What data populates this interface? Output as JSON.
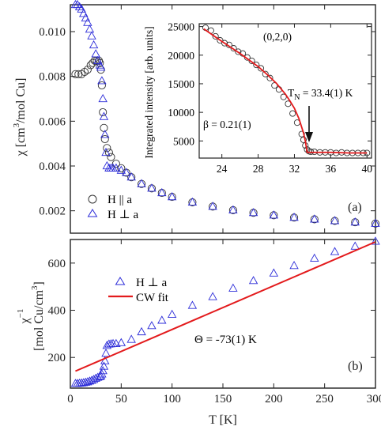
{
  "colors": {
    "circle": "#333333",
    "triangle": "#2b2bd8",
    "fit": "#e31a1c",
    "axis": "#222222"
  },
  "labels": {
    "chi_sub": "3",
    "a_ylabel_pre": "χ [cm",
    "a_ylabel_post": "/mol Cu]",
    "b_ylabel_line1": "χ",
    "b_ylabel_sup": "−1",
    "b_ylabel_line2": "[mol Cu/cm",
    "b_ylabel_sup2": "3",
    "b_ylabel_close": "]",
    "xlabel": "T [K]",
    "panel_a": "(a)",
    "panel_b": "(b)",
    "legend_a1": "H || a",
    "legend_a2": "H ⊥ a",
    "legend_b1": "H ⊥ a",
    "legend_b2": "CW fit",
    "theta": "Θ = -73(1) K",
    "inset_ylabel": "Integrated intensity [arb. units]",
    "inset_peak": "(0,2,0)",
    "inset_tn_pre": "T",
    "inset_tn_sub": "N",
    "inset_tn_post": " = 33.4(1) K",
    "inset_beta": "β  = 0.21(1)"
  },
  "chart_data": [
    {
      "id": "panel-a",
      "type": "scatter",
      "xlabel": "T [K]",
      "ylabel": "χ [cm3/mol Cu]",
      "xlim": [
        0,
        300
      ],
      "ylim": [
        0.001,
        0.0112
      ],
      "xticks": [
        0,
        50,
        100,
        150,
        200,
        250,
        300
      ],
      "yticks": [
        "0.002",
        "0.004",
        "0.006",
        "0.008",
        "0.010"
      ],
      "ytick_values": [
        0.002,
        0.004,
        0.006,
        0.008,
        0.01
      ],
      "series": [
        {
          "name": "H || a",
          "marker": "circle",
          "x": [
            5,
            8,
            11,
            14,
            17,
            20,
            22,
            24,
            26,
            28,
            29,
            30,
            31,
            32,
            33,
            34,
            36,
            38,
            40,
            45,
            50,
            55,
            60,
            70,
            80,
            90,
            100,
            120,
            140,
            160,
            180,
            200,
            220,
            240,
            260,
            280,
            300
          ],
          "y": [
            0.0081,
            0.0081,
            0.0081,
            0.0082,
            0.0083,
            0.0085,
            0.0086,
            0.0087,
            0.0087,
            0.0087,
            0.0086,
            0.0083,
            0.0076,
            0.0064,
            0.0057,
            0.0052,
            0.0048,
            0.0046,
            0.0044,
            0.0041,
            0.0039,
            0.0037,
            0.0035,
            0.0032,
            0.003,
            0.0028,
            0.00262,
            0.00238,
            0.00219,
            0.00203,
            0.00191,
            0.0018,
            0.0017,
            0.00162,
            0.00155,
            0.00149,
            0.00143
          ]
        },
        {
          "name": "H ⊥ a",
          "marker": "triangle",
          "x": [
            5,
            7,
            9,
            11,
            13,
            15,
            17,
            19,
            21,
            23,
            25,
            27,
            29,
            30,
            31,
            32,
            33,
            34,
            35,
            36,
            38,
            40,
            42,
            45,
            50,
            55,
            60,
            70,
            80,
            90,
            100,
            120,
            140,
            160,
            180,
            200,
            220,
            240,
            260,
            280,
            300
          ],
          "y": [
            0.0112,
            0.0112,
            0.0111,
            0.011,
            0.0108,
            0.0106,
            0.0104,
            0.0101,
            0.0098,
            0.0094,
            0.009,
            0.0087,
            0.0085,
            0.0084,
            0.0078,
            0.007,
            0.0062,
            0.0054,
            0.0046,
            0.004,
            0.0039,
            0.0039,
            0.0039,
            0.0039,
            0.0038,
            0.0037,
            0.0035,
            0.0032,
            0.003,
            0.0028,
            0.00262,
            0.00238,
            0.00219,
            0.00203,
            0.00191,
            0.0018,
            0.0017,
            0.00162,
            0.00155,
            0.00149,
            0.00143
          ]
        }
      ]
    },
    {
      "id": "panel-a-inset",
      "type": "scatter",
      "xlabel": "",
      "ylabel": "Integrated intensity [arb. units]",
      "xlim": [
        21.5,
        40.5
      ],
      "ylim": [
        2000,
        25500
      ],
      "xticks": [
        24,
        28,
        32,
        36,
        40
      ],
      "yticks": [
        5000,
        10000,
        15000,
        20000,
        25000
      ],
      "series": [
        {
          "name": "(0,2,0)",
          "marker": "circle",
          "x": [
            22.2,
            22.8,
            23.3,
            23.8,
            24.3,
            24.8,
            25.3,
            25.8,
            26.3,
            26.8,
            27.3,
            27.8,
            28.3,
            28.8,
            29.3,
            29.8,
            30.3,
            30.8,
            31.3,
            31.8,
            32.3,
            32.8,
            33.0,
            33.2,
            33.4,
            33.6,
            33.8,
            34.2,
            34.8,
            35.4,
            36.0,
            36.6,
            37.2,
            37.8,
            38.4,
            39.0,
            39.6,
            40.0
          ],
          "y": [
            24800,
            24300,
            23300,
            22600,
            22100,
            21800,
            21200,
            20600,
            20300,
            19600,
            19000,
            18300,
            17700,
            16700,
            16000,
            14700,
            14000,
            12700,
            11500,
            9800,
            8200,
            6200,
            5200,
            4200,
            3500,
            3200,
            3100,
            3100,
            3000,
            3000,
            3000,
            2900,
            3000,
            2900,
            2900,
            2900,
            2900,
            2900
          ]
        }
      ],
      "fit": {
        "x": [
          22,
          24,
          26,
          28,
          29,
          30,
          31,
          31.5,
          32,
          32.5,
          33,
          33.2,
          33.4,
          34,
          36,
          38,
          40
        ],
        "y": [
          24600,
          22400,
          20300,
          18000,
          16600,
          15100,
          13200,
          12000,
          10700,
          8900,
          6400,
          5000,
          3000,
          3000,
          3000,
          2900,
          2900
        ]
      }
    },
    {
      "id": "panel-b",
      "type": "scatter",
      "xlabel": "T [K]",
      "ylabel": "χ−1 [mol Cu/cm3]",
      "xlim": [
        0,
        300
      ],
      "ylim": [
        70,
        700
      ],
      "xticks": [
        0,
        50,
        100,
        150,
        200,
        250,
        300
      ],
      "yticks": [
        200,
        400,
        600
      ],
      "series": [
        {
          "name": "H ⊥ a",
          "marker": "triangle",
          "x": [
            5,
            7,
            9,
            11,
            13,
            15,
            17,
            19,
            21,
            23,
            25,
            27,
            29,
            30,
            31,
            32,
            33,
            34,
            35,
            36,
            38,
            40,
            42,
            45,
            50,
            60,
            70,
            80,
            90,
            100,
            120,
            140,
            160,
            180,
            200,
            220,
            240,
            260,
            280,
            300
          ],
          "y": [
            89,
            89,
            90,
            91,
            92,
            94,
            96,
            99,
            102,
            106,
            111,
            115,
            118,
            121,
            129,
            143,
            162,
            185,
            217,
            250,
            256,
            257,
            258,
            258,
            262,
            276,
            308,
            334,
            357,
            382,
            420,
            457,
            493,
            525,
            557,
            589,
            620,
            648,
            671,
            692
          ]
        }
      ],
      "fit": {
        "name": "CW fit",
        "x": [
          5,
          300
        ],
        "y": [
          142,
          690
        ]
      }
    }
  ]
}
